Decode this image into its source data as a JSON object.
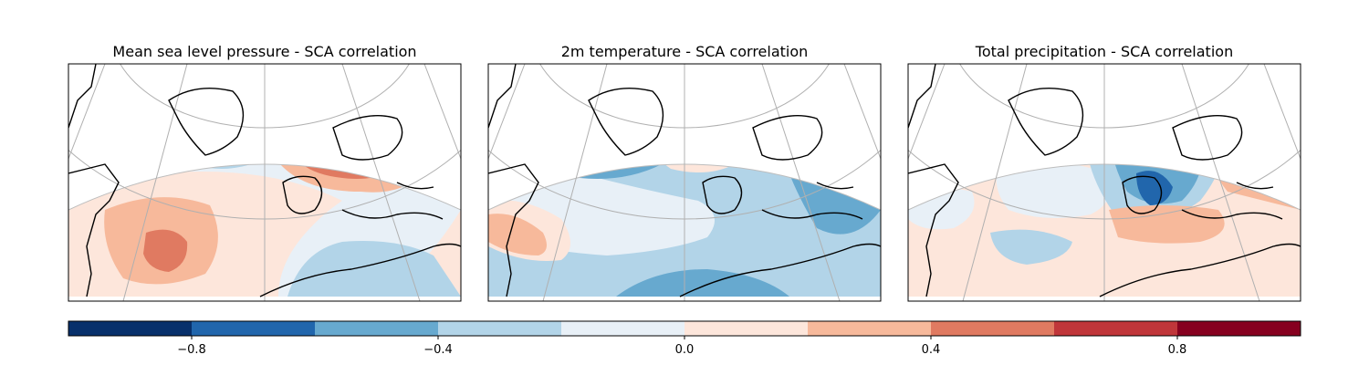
{
  "figure": {
    "panels": [
      {
        "title": "Mean sea level pressure - SCA correlation",
        "variable": "msl"
      },
      {
        "title": "2m temperature - SCA correlation",
        "variable": "t2m"
      },
      {
        "title": "Total precipitation - SCA correlation",
        "variable": "tp"
      }
    ],
    "colorbar": {
      "colormap": "RdBu_r",
      "vmin": -1.0,
      "vmax": 1.0,
      "levels": [
        -1.0,
        -0.8,
        -0.6,
        -0.4,
        -0.2,
        0.0,
        0.2,
        0.4,
        0.6,
        0.8,
        1.0
      ],
      "level_colors": [
        "#08306b",
        "#2166ac",
        "#67a9cf",
        "#b2d4e8",
        "#e8f0f7",
        "#fde6db",
        "#f7b99b",
        "#e07a61",
        "#c0363a",
        "#86001f"
      ],
      "tick_labels": [
        "−0.8",
        "−0.4",
        "0.0",
        "0.4",
        "0.8"
      ],
      "tick_values": [
        -0.8,
        -0.4,
        0.0,
        0.4,
        0.8
      ]
    },
    "map_style": {
      "projection": "conic",
      "gridlines": true,
      "coastlines": true,
      "region": "North Atlantic / Europe"
    }
  }
}
